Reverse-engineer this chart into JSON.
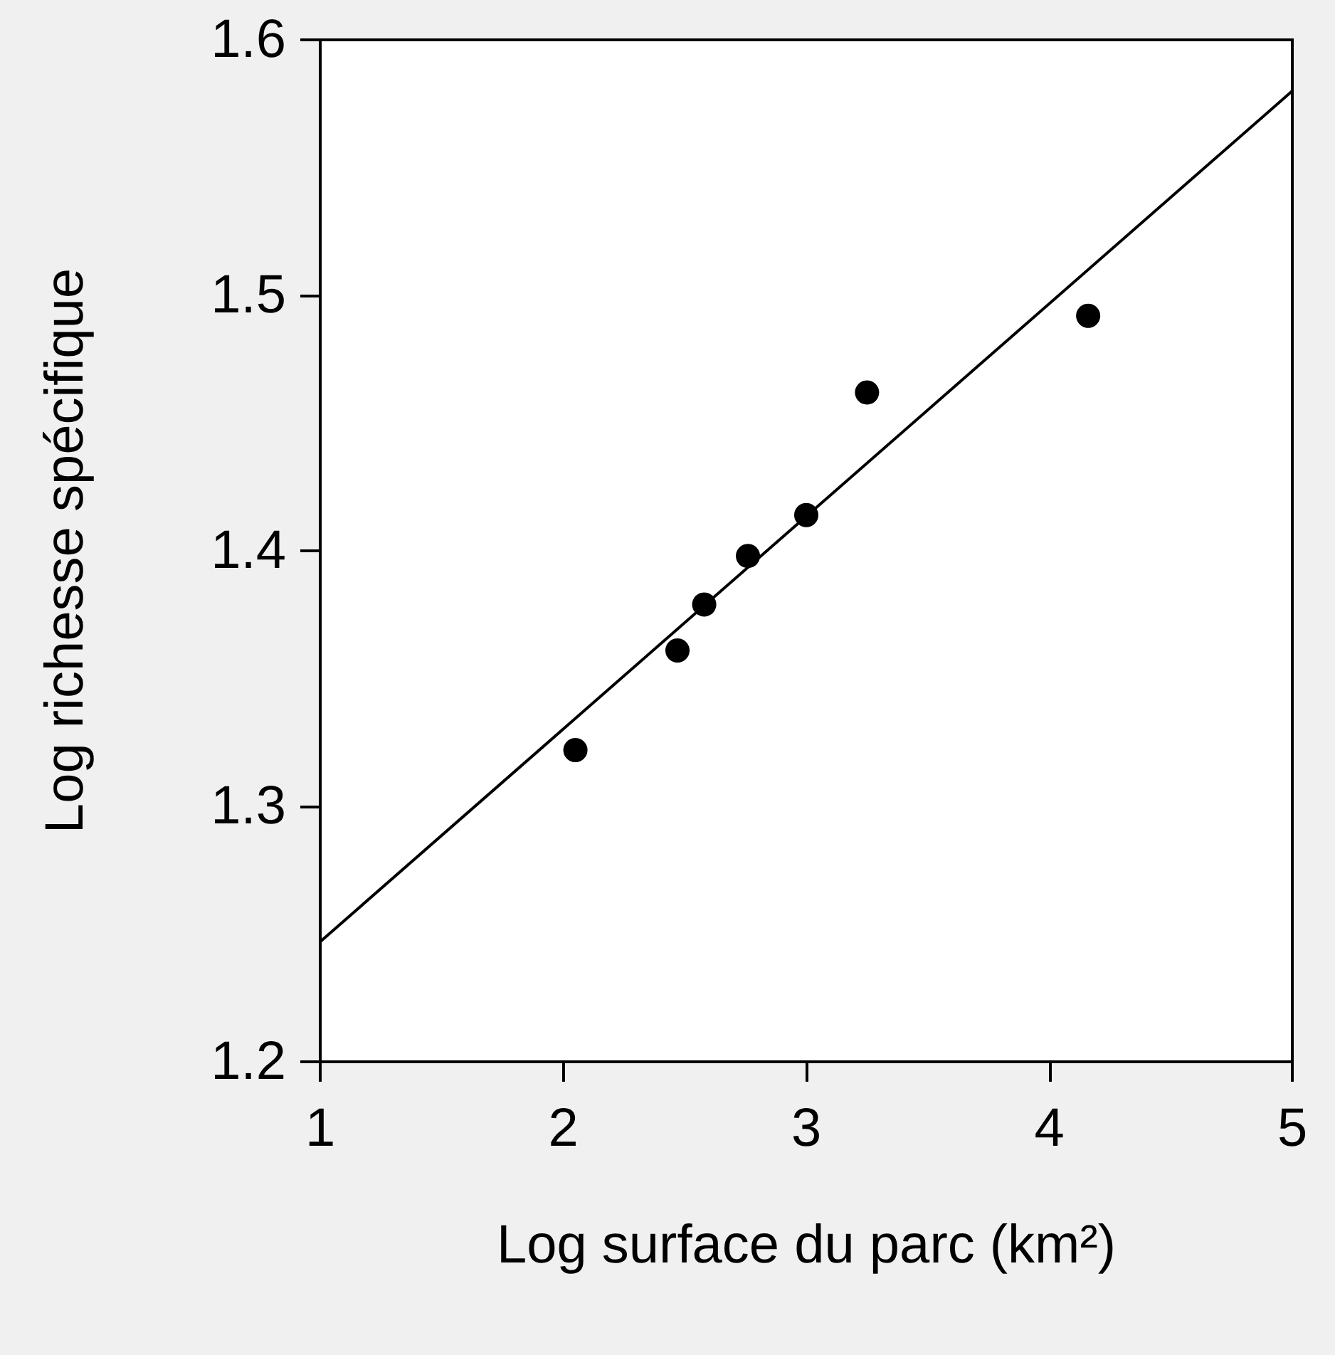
{
  "chart_data": {
    "type": "scatter",
    "xlabel": "Log surface du parc (km²)",
    "ylabel": "Log richesse spécifique",
    "xlim": [
      1,
      5
    ],
    "xticks": [
      1,
      2,
      3,
      4,
      5
    ],
    "ylim": [
      1.2,
      1.6
    ],
    "yticks": [
      1.2,
      1.3,
      1.4,
      1.5,
      1.6
    ],
    "grid": false,
    "marker": "circle",
    "series": [
      {
        "color": "#000000",
        "x": [
          2.05,
          2.47,
          2.58,
          2.76,
          3.0,
          3.25,
          4.16
        ],
        "values": [
          1.322,
          1.361,
          1.379,
          1.398,
          1.414,
          1.462,
          1.492
        ]
      },
      {
        "type": "line",
        "color": "#000000",
        "marker": "none",
        "line_style": "solid",
        "x": [
          1,
          5
        ],
        "values": [
          1.247,
          1.58
        ]
      }
    ]
  }
}
